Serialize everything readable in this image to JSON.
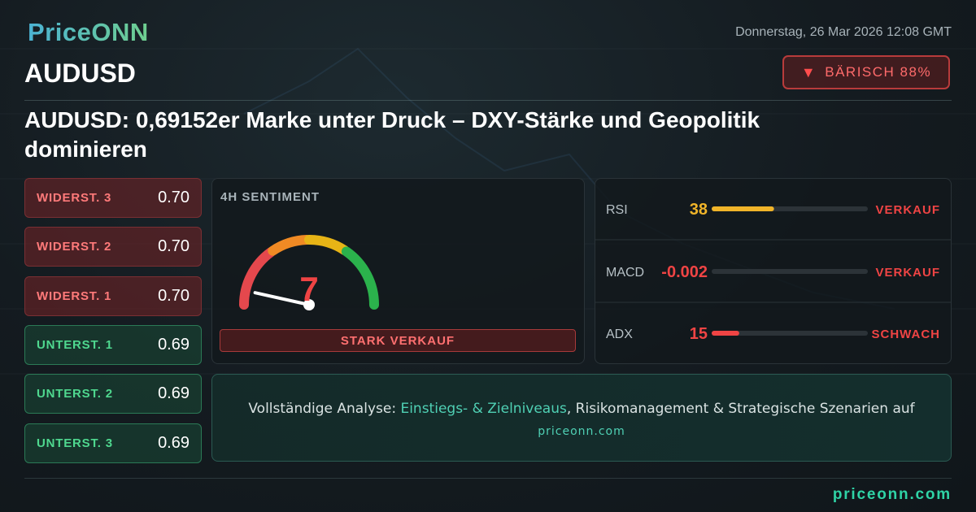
{
  "header": {
    "logo": "PriceONN",
    "datetime": "Donnerstag, 26 Mar 2026 12:08 GMT",
    "symbol": "AUDUSD",
    "badge": "BÄRISCH 88%"
  },
  "headline": "AUDUSD: 0,69152er Marke unter Druck – DXY-Stärke und Geopolitik dominieren",
  "levels": [
    {
      "label": "WIDERST. 3",
      "value": "0.70"
    },
    {
      "label": "WIDERST. 2",
      "value": "0.70"
    },
    {
      "label": "WIDERST. 1",
      "value": "0.70"
    },
    {
      "label": "UNTERST. 1",
      "value": "0.69"
    },
    {
      "label": "UNTERST. 2",
      "value": "0.69"
    },
    {
      "label": "UNTERST. 3",
      "value": "0.69"
    }
  ],
  "sentiment": {
    "title": "4H SENTIMENT",
    "value": 7,
    "label": "STARK VERKAUF"
  },
  "indicators": [
    {
      "name": "RSI",
      "value": 38,
      "signal": "VERKAUF",
      "color": "#f0b429"
    },
    {
      "name": "MACD",
      "value": -0.002,
      "signal": "VERKAUF",
      "color": "#ef4444"
    },
    {
      "name": "ADX",
      "value": 15,
      "signal": "SCHWACH",
      "color": "#ef4444"
    }
  ],
  "cta": {
    "lead": "Vollständige Analyse:",
    "highlight": "Einstiegs- & Zielniveaus",
    "rest": ", Risikomanagement & Strategische Szenarien auf",
    "link": "priceonn.com"
  },
  "footer": "priceonn.com"
}
